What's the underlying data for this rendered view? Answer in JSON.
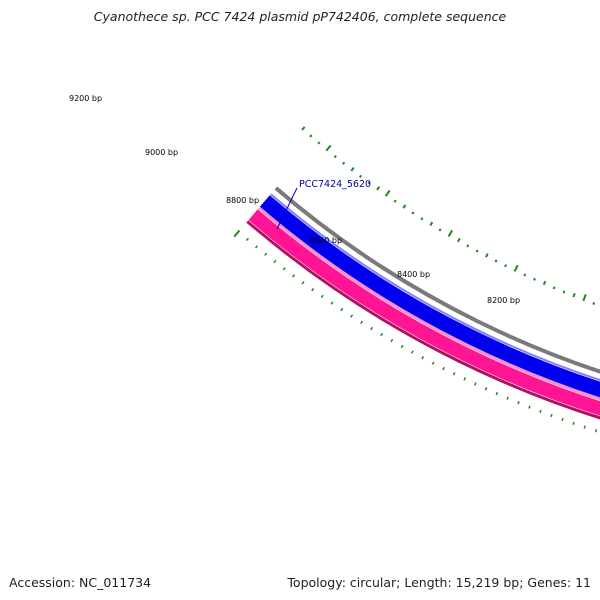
{
  "title": "Cyanothece sp. PCC 7424 plasmid pP742406, complete sequence",
  "footer": {
    "accession": "Accession: NC_011734",
    "summary": "Topology: circular; Length: 15,219 bp; Genes: 11"
  },
  "tick_labels": [
    "9200 bp",
    "9000 bp",
    "8800 bp",
    "8600 bp",
    "8400 bp",
    "8200 bp"
  ],
  "gene_label": "PCC7424_5620",
  "colors": {
    "outer_border": "#b0125f",
    "gene_band": "#ff1493",
    "gene_band_light": "#ff8cc6",
    "cds_band": "#0000ee",
    "cds_band_light": "#8080ff",
    "inner_line": "#7a7a7a",
    "gc_marks": "#1a8a1a",
    "tick": "#1a8a1a",
    "leader": "#0000cc"
  }
}
